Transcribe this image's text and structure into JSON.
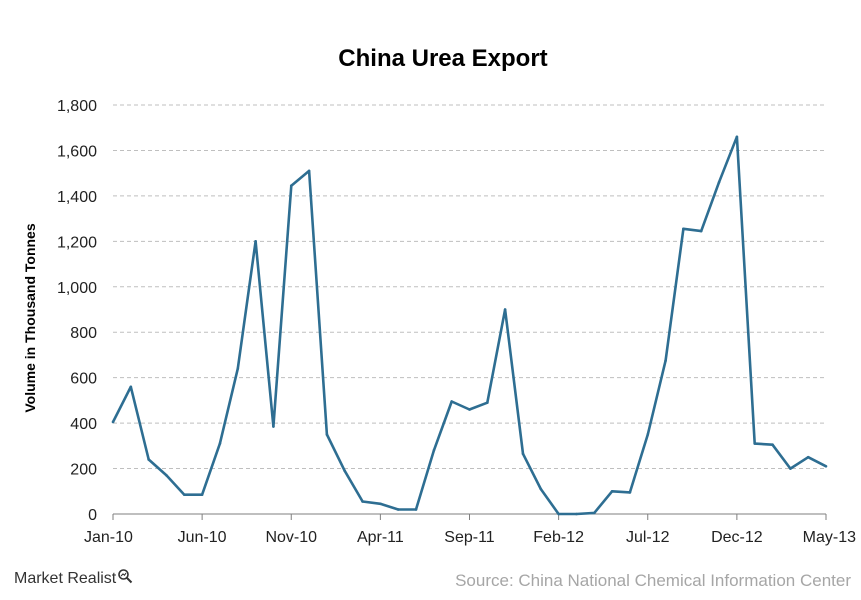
{
  "chart_data": {
    "type": "line",
    "title": "China Urea Export",
    "ylabel": "Volume in Thousand Tonnes",
    "xlabel": "",
    "ylim": [
      0,
      1800
    ],
    "yticks": [
      0,
      200,
      400,
      600,
      800,
      1000,
      1200,
      1400,
      1600,
      1800
    ],
    "ytick_labels": [
      "0",
      "200",
      "400",
      "600",
      "800",
      "1,000",
      "1,200",
      "1,400",
      "1,600",
      "1,800"
    ],
    "xtick_labels": [
      "Jan-10",
      "Jun-10",
      "Nov-10",
      "Apr-11",
      "Sep-11",
      "Feb-12",
      "Jul-12",
      "Dec-12",
      "May-13"
    ],
    "grid": "horizontal dashed",
    "x": [
      "Jan-10",
      "Feb-10",
      "Mar-10",
      "Apr-10",
      "May-10",
      "Jun-10",
      "Jul-10",
      "Aug-10",
      "Sep-10",
      "Oct-10",
      "Nov-10",
      "Dec-10",
      "Jan-11",
      "Feb-11",
      "Mar-11",
      "Apr-11",
      "May-11",
      "Jun-11",
      "Jul-11",
      "Aug-11",
      "Sep-11",
      "Oct-11",
      "Nov-11",
      "Dec-11",
      "Jan-12",
      "Feb-12",
      "Mar-12",
      "Apr-12",
      "May-12",
      "Jun-12",
      "Jul-12",
      "Aug-12",
      "Sep-12",
      "Oct-12",
      "Nov-12",
      "Dec-12",
      "Jan-13",
      "Feb-13",
      "Mar-13",
      "Apr-13",
      "May-13"
    ],
    "series": [
      {
        "color": "#2e6e92",
        "values": [
          405,
          560,
          240,
          170,
          85,
          85,
          310,
          640,
          1200,
          385,
          1445,
          1510,
          350,
          190,
          55,
          45,
          20,
          20,
          280,
          495,
          460,
          490,
          900,
          265,
          110,
          0,
          0,
          5,
          100,
          95,
          350,
          675,
          1255,
          1245,
          1460,
          1660,
          310,
          305,
          200,
          250,
          210
        ]
      }
    ]
  },
  "footer": {
    "brand": "Market Realist",
    "source": "Source: China National Chemical Information Center"
  }
}
